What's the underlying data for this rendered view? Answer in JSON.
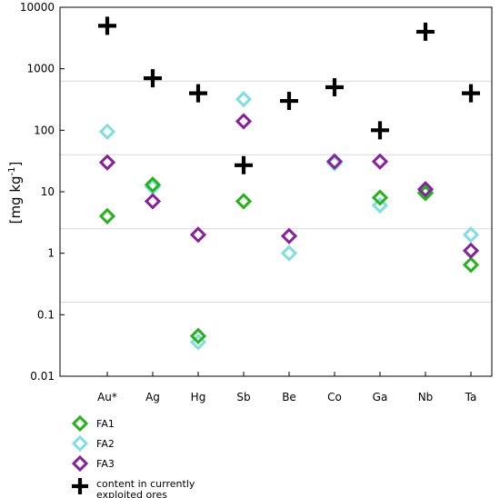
{
  "chart_data": {
    "type": "scatter",
    "title": "",
    "xlabel": "",
    "ylabel": "[mg kg-1]",
    "ylabel_main": "[mg kg",
    "ylabel_sup": "-1",
    "ylabel_close": "]",
    "y_scale": "log",
    "ylim": [
      0.01,
      10000
    ],
    "y_ticks": [
      "0.01",
      "0.1",
      "1",
      "10",
      "100",
      "1000",
      "10000"
    ],
    "y_tick_values": [
      0.01,
      0.1,
      1,
      10,
      100,
      1000,
      10000
    ],
    "categories": [
      "Au*",
      "Ag",
      "Hg",
      "Sb",
      "Be",
      "Co",
      "Ga",
      "Nb",
      "Ta"
    ],
    "grid": "horizontal",
    "grid_values": [
      0.16,
      2.5,
      40,
      630
    ],
    "legend_position": "bottom-left",
    "series": [
      {
        "name": "FA2",
        "marker": "diamond-open",
        "color": "#7fdfe0",
        "values": [
          95,
          12,
          0.036,
          320,
          1.0,
          29,
          6,
          10,
          2.0
        ]
      },
      {
        "name": "FA1",
        "marker": "diamond-open",
        "color": "#22b518",
        "values": [
          4,
          13,
          0.045,
          7,
          null,
          null,
          8,
          9.5,
          0.65
        ]
      },
      {
        "name": "FA3",
        "marker": "diamond-open",
        "color": "#8a1f9e",
        "values": [
          30,
          7,
          2.0,
          140,
          1.9,
          31,
          31,
          11,
          1.1
        ]
      },
      {
        "name": "content in currently exploited ores",
        "marker": "plus",
        "color": "#000000",
        "values": [
          5000,
          700,
          400,
          27,
          300,
          500,
          100,
          4000,
          400
        ]
      }
    ],
    "legend": [
      {
        "label": "FA1",
        "marker": "diamond-open",
        "color": "#22b518"
      },
      {
        "label": "FA2",
        "marker": "diamond-open",
        "color": "#7fdfe0"
      },
      {
        "label": "FA3",
        "marker": "diamond-open",
        "color": "#8a1f9e"
      },
      {
        "label_lines": [
          "content in currently",
          "exploited ores"
        ],
        "marker": "plus",
        "color": "#000000"
      }
    ]
  }
}
